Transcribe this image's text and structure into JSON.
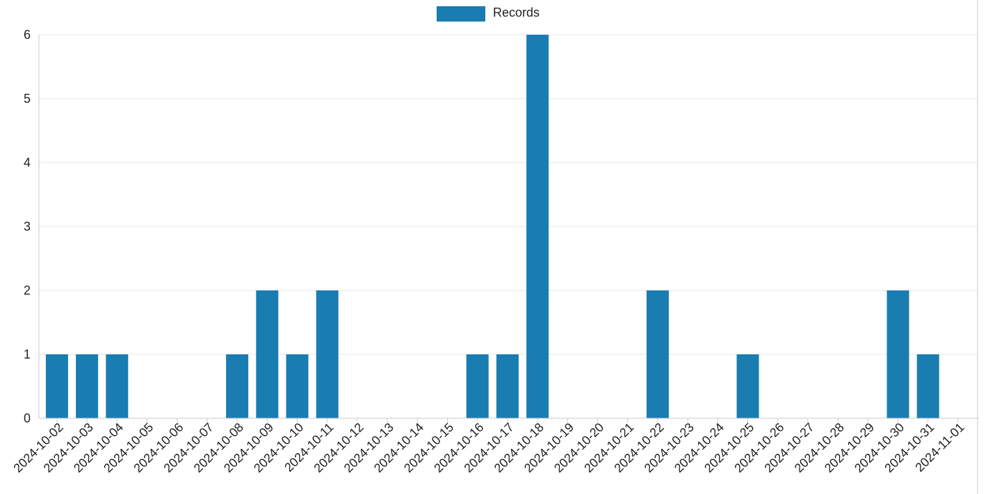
{
  "colors": {
    "bar": "#1a7db1",
    "grid": "#e6e6e6",
    "text": "#222222"
  },
  "chart_data": {
    "type": "bar",
    "categories": [
      "2024-10-02",
      "2024-10-03",
      "2024-10-04",
      "2024-10-05",
      "2024-10-06",
      "2024-10-07",
      "2024-10-08",
      "2024-10-09",
      "2024-10-10",
      "2024-10-11",
      "2024-10-12",
      "2024-10-13",
      "2024-10-14",
      "2024-10-15",
      "2024-10-16",
      "2024-10-17",
      "2024-10-18",
      "2024-10-19",
      "2024-10-20",
      "2024-10-21",
      "2024-10-22",
      "2024-10-23",
      "2024-10-24",
      "2024-10-25",
      "2024-10-26",
      "2024-10-27",
      "2024-10-28",
      "2024-10-29",
      "2024-10-30",
      "2024-10-31",
      "2024-11-01"
    ],
    "series": [
      {
        "name": "Records",
        "values": [
          1,
          1,
          1,
          0,
          0,
          0,
          1,
          2,
          1,
          2,
          0,
          0,
          0,
          0,
          1,
          1,
          6,
          0,
          0,
          0,
          2,
          0,
          0,
          1,
          0,
          0,
          0,
          0,
          2,
          1,
          0
        ]
      }
    ],
    "ylim": [
      0,
      6
    ],
    "yticks": [
      0,
      1,
      2,
      3,
      4,
      5,
      6
    ],
    "grid": true,
    "legend_position": "top-center"
  }
}
